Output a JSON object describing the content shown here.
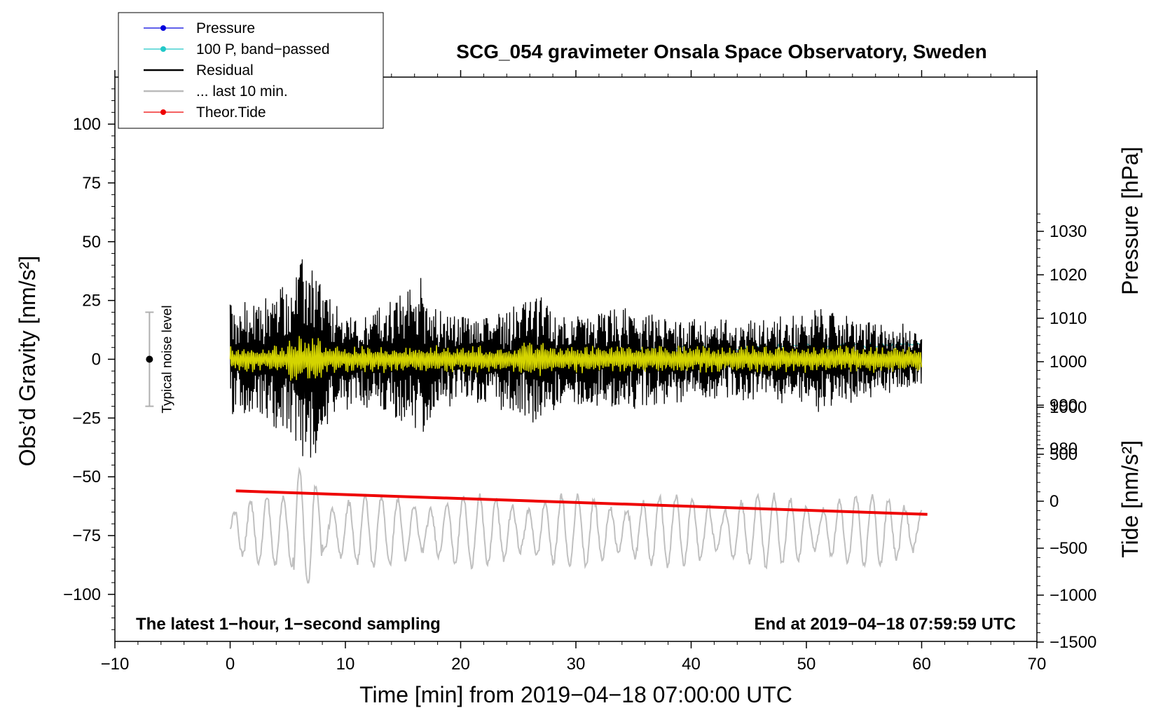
{
  "chart_data": {
    "type": "line",
    "title": "SCG_054 gravimeter Onsala Space Observatory, Sweden",
    "xlabel": "Time [min] from 2019−04−18 07:00:00 UTC",
    "ylabel": "Obs’d Gravity [nm/s²]",
    "ylabel_right_top": "Pressure [hPa]",
    "ylabel_right_bottom": "Tide [nm/s²]",
    "xlim": [
      -10,
      70
    ],
    "ylim": [
      -120,
      120
    ],
    "pressure_ylim": [
      980,
      1030
    ],
    "tide_ylim": [
      -1500,
      1000
    ],
    "x_ticks": [
      {
        "value": -10,
        "label": "−10"
      },
      {
        "value": 0,
        "label": "0"
      },
      {
        "value": 10,
        "label": "10"
      },
      {
        "value": 20,
        "label": "20"
      },
      {
        "value": 30,
        "label": "30"
      },
      {
        "value": 40,
        "label": "40"
      },
      {
        "value": 50,
        "label": "50"
      },
      {
        "value": 60,
        "label": "60"
      },
      {
        "value": 70,
        "label": "70"
      }
    ],
    "y_ticks": [
      {
        "value": 100,
        "label": "100"
      },
      {
        "value": 75,
        "label": "75"
      },
      {
        "value": 50,
        "label": "50"
      },
      {
        "value": 25,
        "label": "25"
      },
      {
        "value": 0,
        "label": "0"
      },
      {
        "value": -25,
        "label": "−25"
      },
      {
        "value": -50,
        "label": "−50"
      },
      {
        "value": -75,
        "label": "−75"
      },
      {
        "value": -100,
        "label": "−100"
      }
    ],
    "pressure_ticks": [
      {
        "value": 1030,
        "label": "1030"
      },
      {
        "value": 1020,
        "label": "1020"
      },
      {
        "value": 1010,
        "label": "1010"
      },
      {
        "value": 1000,
        "label": "1000"
      },
      {
        "value": 990,
        "label": "990"
      },
      {
        "value": 980,
        "label": "980"
      }
    ],
    "tide_ticks": [
      {
        "value": 1000,
        "label": "1000"
      },
      {
        "value": 500,
        "label": "500"
      },
      {
        "value": 0,
        "label": "0"
      },
      {
        "value": -500,
        "label": "−500"
      },
      {
        "value": -1000,
        "label": "−1000"
      },
      {
        "value": -1500,
        "label": "−1500"
      }
    ],
    "legend": {
      "placement": "top-left",
      "entries": [
        {
          "label": "Pressure",
          "color": "#0000dd",
          "marker": true
        },
        {
          "label": "100 P, band−passed",
          "color": "#22c8c8",
          "marker": true
        },
        {
          "label": "Residual",
          "color": "#000000",
          "marker": false
        },
        {
          "label": "... last 10 min.",
          "color": "#bbbbbb",
          "marker": false
        },
        {
          "label": "Theor.Tide",
          "color": "#ee0000",
          "marker": true
        }
      ]
    },
    "series": [
      {
        "name": "100 P, band-passed",
        "axis": "pressure",
        "color": "#22c8c8",
        "x_range": [
          0.3,
          60
        ],
        "start": 1001.5,
        "end": 1004.0,
        "noise": 0.6
      },
      {
        "name": "Residual",
        "axis": "gravity",
        "color": "#000000",
        "x_range": [
          0,
          60
        ],
        "envelope": [
          [
            0,
            25
          ],
          [
            2,
            22
          ],
          [
            4,
            30
          ],
          [
            5.5,
            35
          ],
          [
            6.5,
            45
          ],
          [
            7.5,
            38
          ],
          [
            9,
            22
          ],
          [
            11,
            18
          ],
          [
            13,
            22
          ],
          [
            15,
            28
          ],
          [
            16.5,
            35
          ],
          [
            18,
            20
          ],
          [
            21,
            18
          ],
          [
            24,
            22
          ],
          [
            26.5,
            28
          ],
          [
            28,
            20
          ],
          [
            31,
            18
          ],
          [
            33.5,
            22
          ],
          [
            36,
            18
          ],
          [
            40,
            17
          ],
          [
            43,
            16
          ],
          [
            46,
            17
          ],
          [
            50,
            18
          ],
          [
            51,
            22
          ],
          [
            55,
            16
          ],
          [
            58,
            14
          ],
          [
            60,
            12
          ]
        ]
      },
      {
        "name": "Yellow filtered",
        "axis": "gravity",
        "color": "#d4d400",
        "x_range": [
          0,
          60
        ],
        "amplitude": 6
      },
      {
        "name": "Theor.Tide",
        "axis": "tide",
        "color": "#ee0000",
        "x": [
          0.5,
          60.5
        ],
        "y": [
          110,
          -140
        ]
      },
      {
        "name": "... last 10 min.",
        "axis": "gravity",
        "color": "#c0c0c0",
        "x_range": [
          0,
          60
        ],
        "center": -73,
        "amplitude": 15
      }
    ],
    "noise_bar": {
      "label": "Typical noise level",
      "x": -7,
      "center": 0,
      "half_range": 20
    },
    "annotations": {
      "left": "The latest 1−hour, 1−second sampling",
      "right": "End at 2019−04−18 07:59:59 UTC"
    }
  }
}
